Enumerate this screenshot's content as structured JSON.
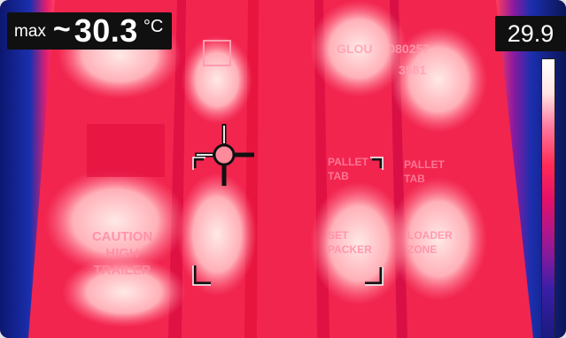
{
  "overlay": {
    "max_label": "max",
    "approx_symbol": "~",
    "max_value": "30.3",
    "unit": "°C"
  },
  "scale": {
    "top_value": "29.9"
  },
  "markings": {
    "left_label": [
      "CAUTION",
      "HIGH",
      "TRAILER"
    ],
    "center_top_code_line1": "GLOU",
    "center_top_code_line2": "080257",
    "center_top_code_line3": "3581",
    "center_mid_left": [
      "PALLET",
      "TAB"
    ],
    "center_mid_right": [
      "PALLET",
      "TAB"
    ],
    "center_low_left": [
      "SET",
      "PACKER"
    ],
    "center_low_right": [
      "LOADER",
      "ZONE"
    ]
  },
  "colors": {
    "hot_white": "#ffe8e6",
    "pink": "#ff6f91",
    "red": "#f2254f",
    "blue_edge": "#1a2a9a"
  }
}
